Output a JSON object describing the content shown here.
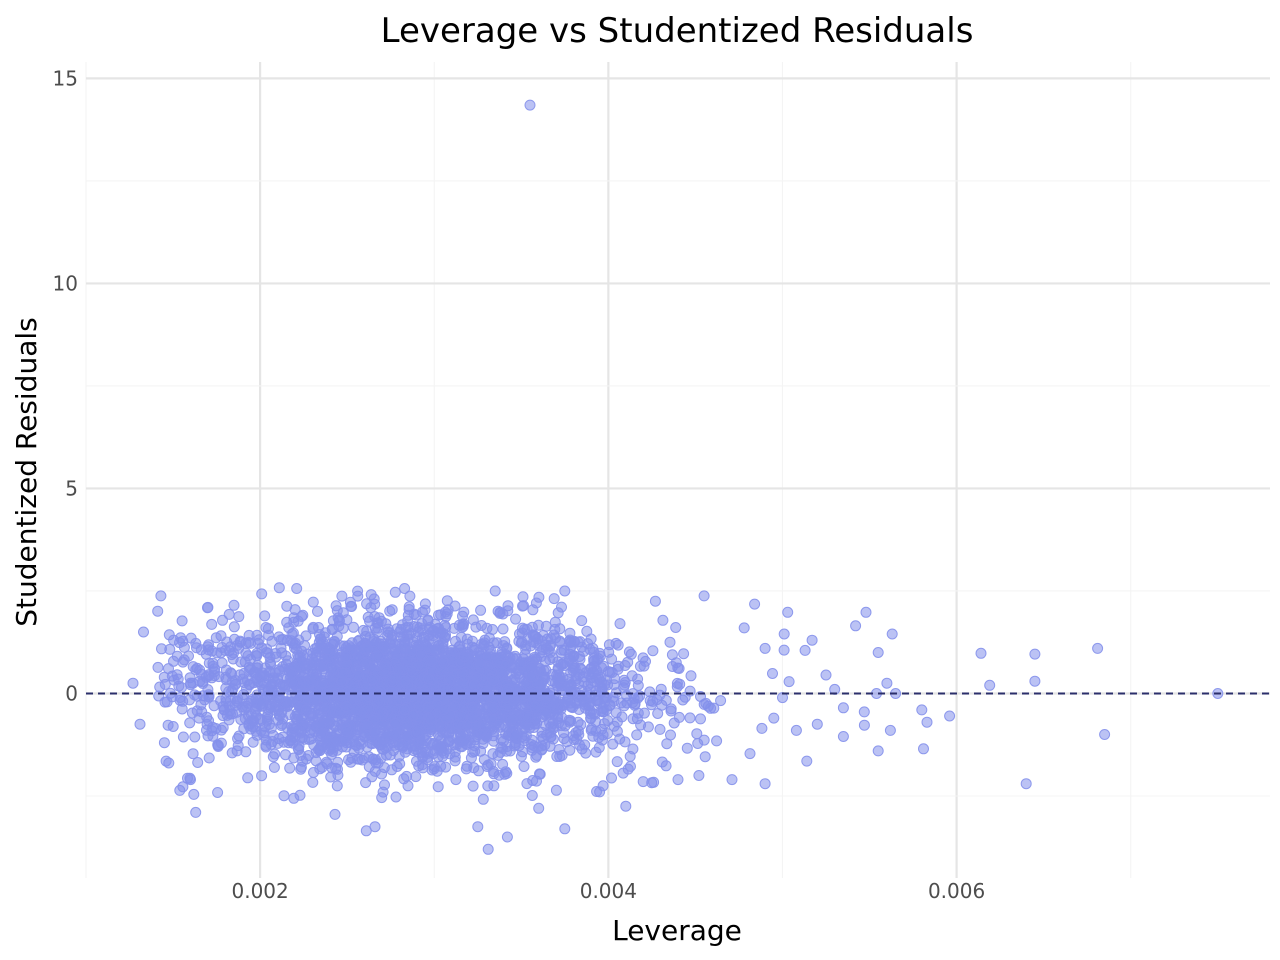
{
  "chart_data": {
    "type": "scatter",
    "title": "Leverage vs Studentized Residuals",
    "xlabel": "Leverage",
    "ylabel": "Studentized Residuals",
    "xlim": [
      0.001,
      0.0078
    ],
    "ylim": [
      -4.5,
      15.4
    ],
    "x_ticks": [
      0.002,
      0.004,
      0.006
    ],
    "x_tick_labels": [
      "0.002",
      "0.004",
      "0.006"
    ],
    "y_ticks": [
      0,
      5,
      10,
      15
    ],
    "y_tick_labels": [
      "0",
      "5",
      "10",
      "15"
    ],
    "grid": true,
    "reference_line": {
      "y": 0,
      "style": "dashed",
      "color": "#2b2f6b"
    },
    "point_color": "#8490eb",
    "point_opacity": 0.55,
    "cloud": {
      "count": 3400,
      "x_center": 0.0029,
      "x_spread": 0.0006,
      "y_center": 0,
      "y_spread": 0.85
    },
    "points": [
      {
        "x": 0.00355,
        "y": 14.35
      },
      {
        "x": 0.00143,
        "y": 2.38
      },
      {
        "x": 0.00211,
        "y": 2.58
      },
      {
        "x": 0.00221,
        "y": 2.56
      },
      {
        "x": 0.00335,
        "y": 2.5
      },
      {
        "x": 0.00283,
        "y": 2.56
      },
      {
        "x": 0.00375,
        "y": 2.5
      },
      {
        "x": 0.00133,
        "y": 1.5
      },
      {
        "x": 0.00127,
        "y": 0.25
      },
      {
        "x": 0.00131,
        "y": -0.75
      },
      {
        "x": 0.00145,
        "y": -1.2
      },
      {
        "x": 0.00146,
        "y": -1.65
      },
      {
        "x": 0.0016,
        "y": -2.1
      },
      {
        "x": 0.00163,
        "y": -2.9
      },
      {
        "x": 0.00243,
        "y": -2.95
      },
      {
        "x": 0.00261,
        "y": -3.35
      },
      {
        "x": 0.00266,
        "y": -3.25
      },
      {
        "x": 0.00325,
        "y": -3.25
      },
      {
        "x": 0.00331,
        "y": -3.8
      },
      {
        "x": 0.00342,
        "y": -3.5
      },
      {
        "x": 0.00375,
        "y": -3.3
      },
      {
        "x": 0.0041,
        "y": -2.75
      },
      {
        "x": 0.00427,
        "y": 2.25
      },
      {
        "x": 0.00455,
        "y": 2.38
      },
      {
        "x": 0.00484,
        "y": 2.18
      },
      {
        "x": 0.00503,
        "y": 1.98
      },
      {
        "x": 0.00548,
        "y": 1.98
      },
      {
        "x": 0.00542,
        "y": 1.65
      },
      {
        "x": 0.00563,
        "y": 1.45
      },
      {
        "x": 0.00555,
        "y": 1.0
      },
      {
        "x": 0.00513,
        "y": 1.05
      },
      {
        "x": 0.00517,
        "y": 1.3
      },
      {
        "x": 0.00554,
        "y": 0.0
      },
      {
        "x": 0.0056,
        "y": 0.25
      },
      {
        "x": 0.00565,
        "y": 0.0
      },
      {
        "x": 0.0058,
        "y": -0.4
      },
      {
        "x": 0.00583,
        "y": -0.7
      },
      {
        "x": 0.00596,
        "y": -0.55
      },
      {
        "x": 0.00562,
        "y": -0.9
      },
      {
        "x": 0.00555,
        "y": -1.4
      },
      {
        "x": 0.00581,
        "y": -1.35
      },
      {
        "x": 0.00535,
        "y": -1.05
      },
      {
        "x": 0.00547,
        "y": -0.45
      },
      {
        "x": 0.00514,
        "y": -1.65
      },
      {
        "x": 0.0049,
        "y": -2.2
      },
      {
        "x": 0.00614,
        "y": 0.98
      },
      {
        "x": 0.00619,
        "y": 0.2
      },
      {
        "x": 0.00645,
        "y": 0.96
      },
      {
        "x": 0.00645,
        "y": 0.3
      },
      {
        "x": 0.0064,
        "y": -2.2
      },
      {
        "x": 0.00681,
        "y": 1.1
      },
      {
        "x": 0.00685,
        "y": -1.0
      },
      {
        "x": 0.0075,
        "y": 0.0
      },
      {
        "x": 0.00471,
        "y": -2.1
      },
      {
        "x": 0.00452,
        "y": -2.0
      },
      {
        "x": 0.0044,
        "y": -2.1
      },
      {
        "x": 0.0042,
        "y": -2.15
      },
      {
        "x": 0.00395,
        "y": -2.4
      },
      {
        "x": 0.0036,
        "y": -2.8
      },
      {
        "x": 0.0017,
        "y": 2.1
      },
      {
        "x": 0.00185,
        "y": 2.15
      },
      {
        "x": 0.00478,
        "y": 1.6
      },
      {
        "x": 0.0049,
        "y": 1.1
      },
      {
        "x": 0.00501,
        "y": 1.45
      },
      {
        "x": 0.00525,
        "y": 0.45
      },
      {
        "x": 0.0053,
        "y": 0.1
      },
      {
        "x": 0.00535,
        "y": -0.35
      },
      {
        "x": 0.005,
        "y": -0.1
      },
      {
        "x": 0.00495,
        "y": -0.6
      },
      {
        "x": 0.00508,
        "y": -0.9
      },
      {
        "x": 0.0052,
        "y": -0.75
      }
    ]
  }
}
